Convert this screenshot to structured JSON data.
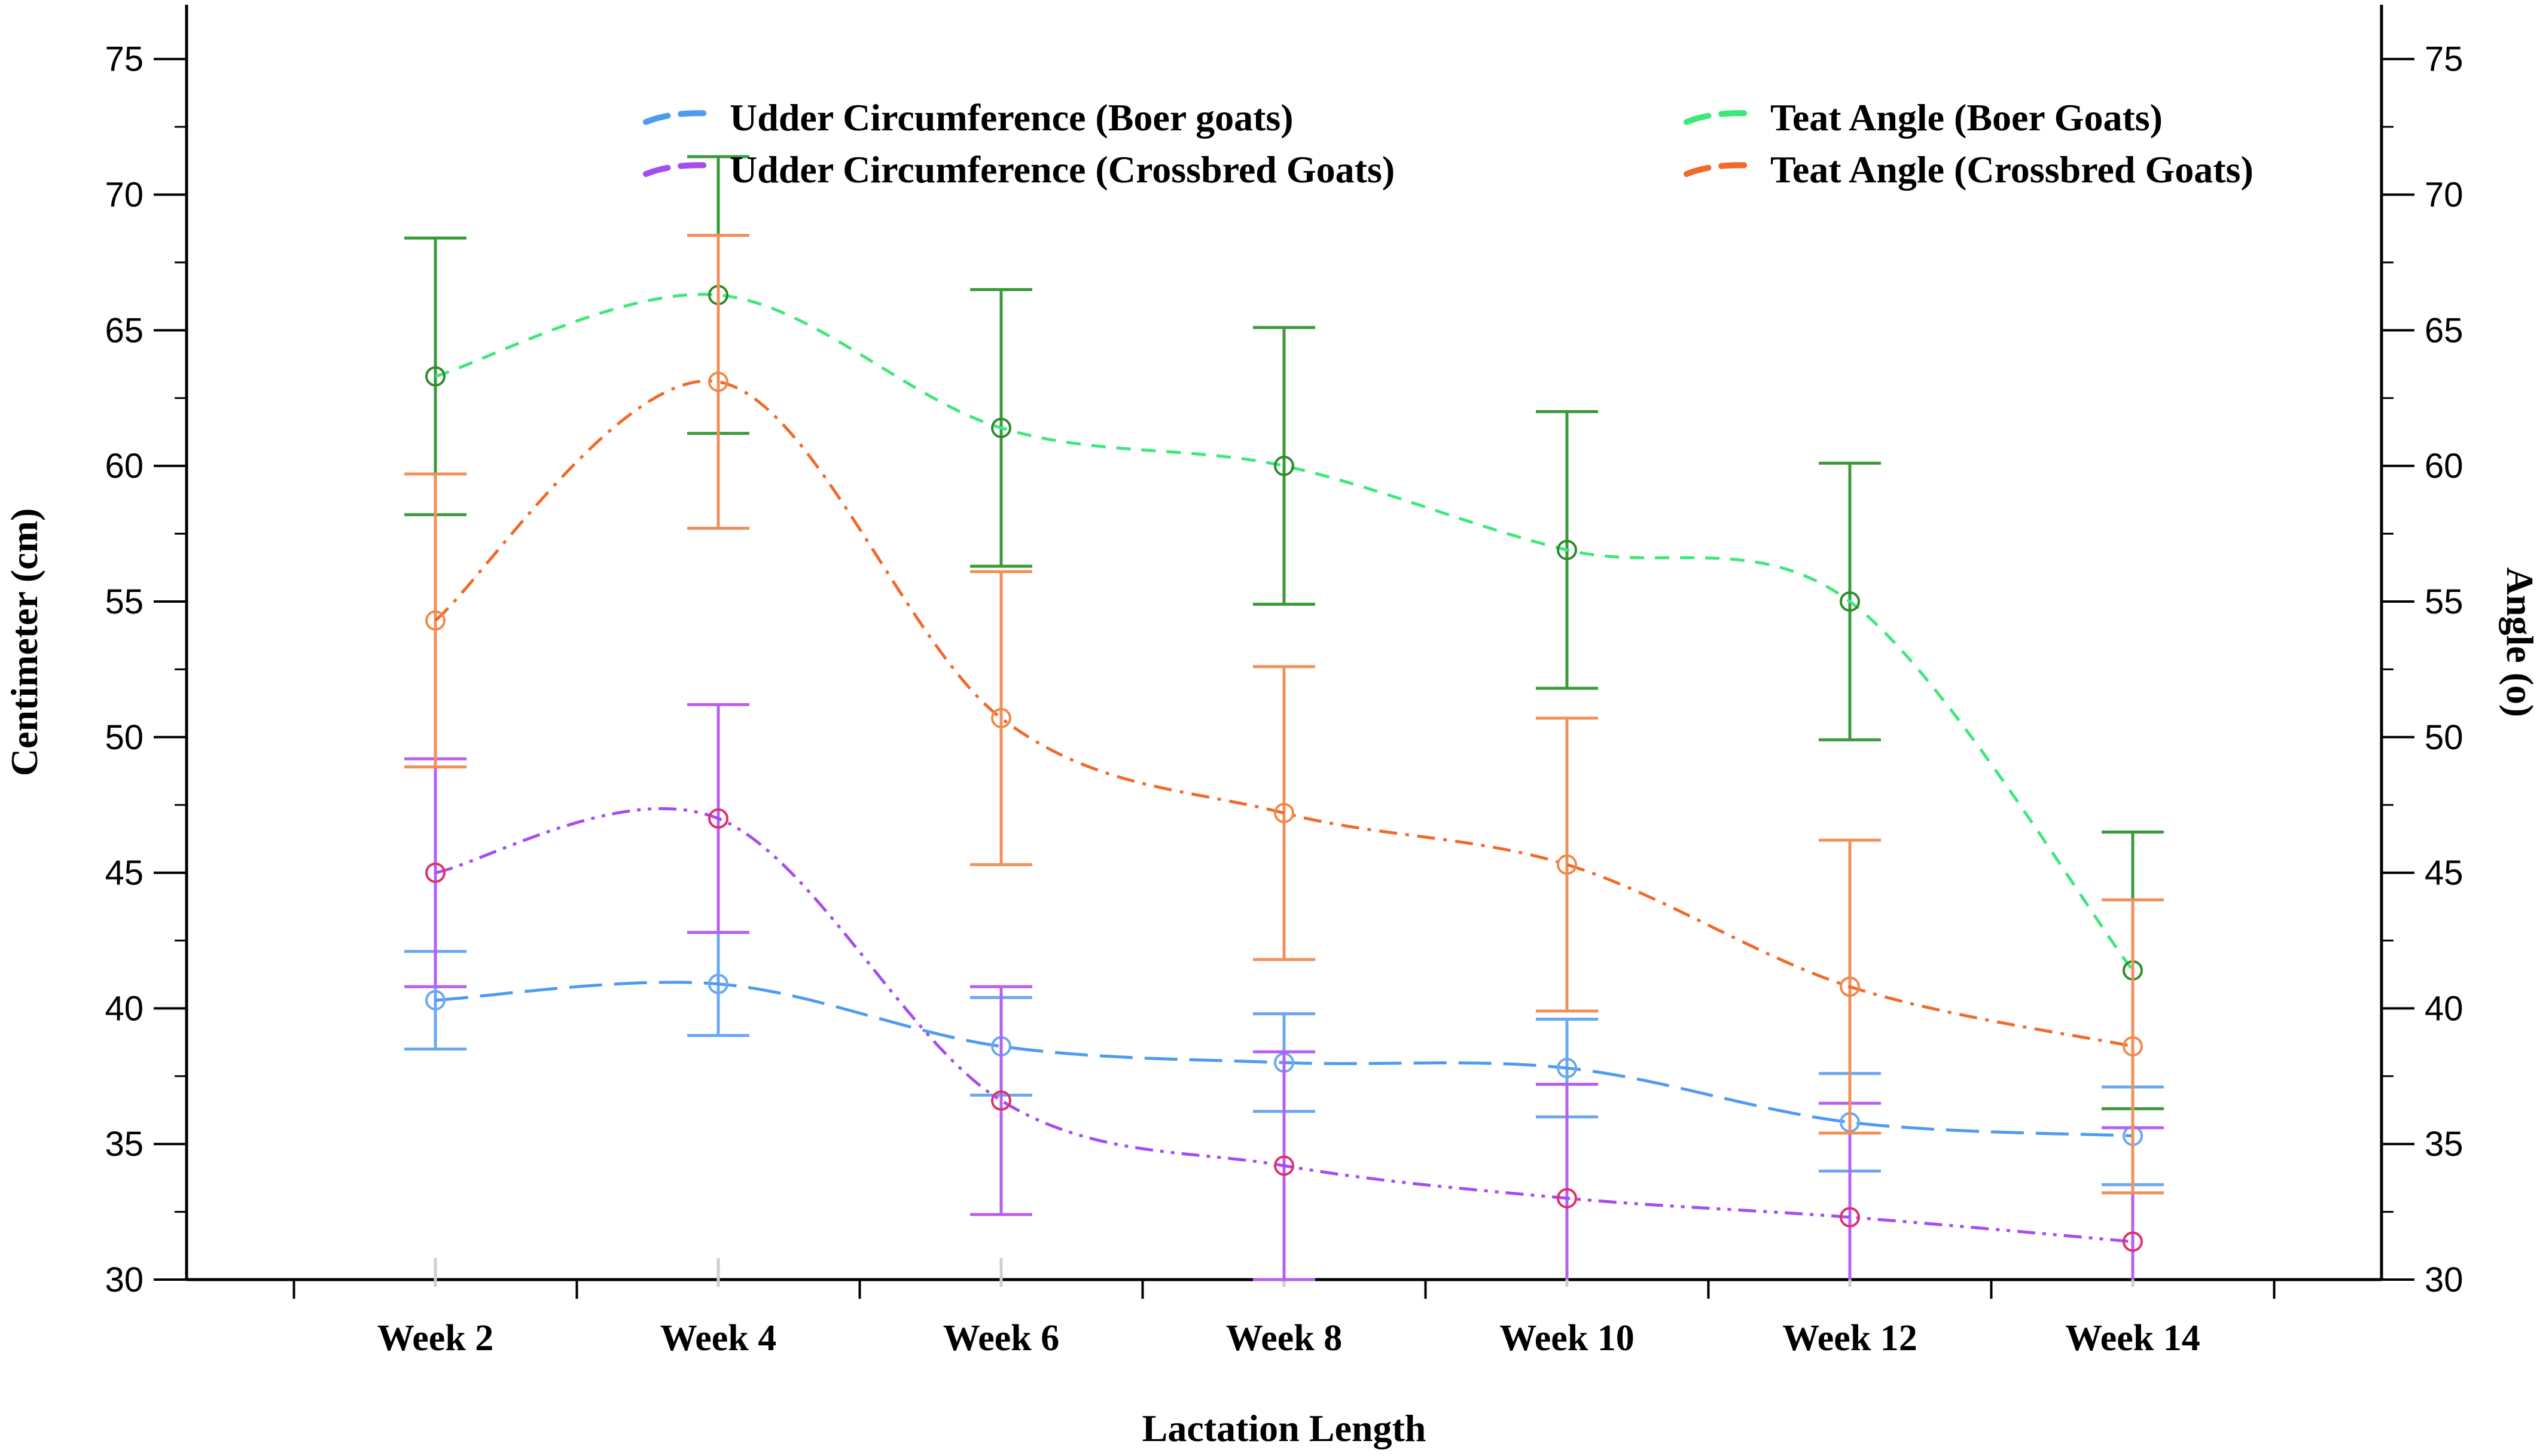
{
  "chart_data": {
    "type": "line",
    "title": "",
    "xlabel": "Lactation Length",
    "ylabel": "Centimeter (cm)",
    "ylabel_right": "Angle (o)",
    "categories": [
      "Week 2",
      "Week 4",
      "Week 6",
      "Week 8",
      "Week 10",
      "Week 12",
      "Week 14"
    ],
    "ylim": [
      30,
      77
    ],
    "y_ticks": [
      30,
      35,
      40,
      45,
      50,
      55,
      60,
      65,
      70,
      75
    ],
    "legend_position": "top",
    "series": [
      {
        "name": "Udder Circumference (Boer goats)",
        "axis": "left",
        "line_color": "#4f9bf0",
        "marker_color": "#6aa8f0",
        "error_color": "#6aa8f0",
        "dash": "long-dash",
        "values": [
          40.3,
          40.9,
          38.6,
          38.0,
          37.8,
          35.8,
          35.3
        ],
        "errors": [
          1.8,
          1.9,
          1.8,
          1.8,
          1.8,
          1.8,
          1.8
        ]
      },
      {
        "name": "Udder Circumference  (Crossbred Goats)",
        "axis": "left",
        "line_color": "#a64df0",
        "marker_color": "#e0306a",
        "error_color": "#b65ff0",
        "dash": "dash-dot-dot",
        "values": [
          45.0,
          47.0,
          36.6,
          34.2,
          33.0,
          32.3,
          31.4
        ],
        "errors": [
          4.2,
          4.2,
          4.2,
          4.2,
          4.2,
          4.2,
          4.2
        ]
      },
      {
        "name": "Teat Angle (Boer Goats)",
        "axis": "right",
        "line_color": "#3de87a",
        "marker_color": "#2e8b2e",
        "error_color": "#3a9a3a",
        "dash": "dash",
        "values": [
          63.3,
          66.3,
          61.4,
          60.0,
          56.9,
          55.0,
          41.4
        ],
        "errors": [
          5.1,
          5.1,
          5.1,
          5.1,
          5.1,
          5.1,
          5.1
        ]
      },
      {
        "name": "Teat Angle (Crossbred Goats)",
        "axis": "right",
        "line_color": "#f06a2a",
        "marker_color": "#f08a4a",
        "error_color": "#f0905a",
        "dash": "dash-dot",
        "values": [
          54.3,
          63.1,
          50.7,
          47.2,
          45.3,
          40.8,
          38.6
        ],
        "errors": [
          5.4,
          5.4,
          5.4,
          5.4,
          5.4,
          5.4,
          5.4
        ]
      }
    ]
  }
}
